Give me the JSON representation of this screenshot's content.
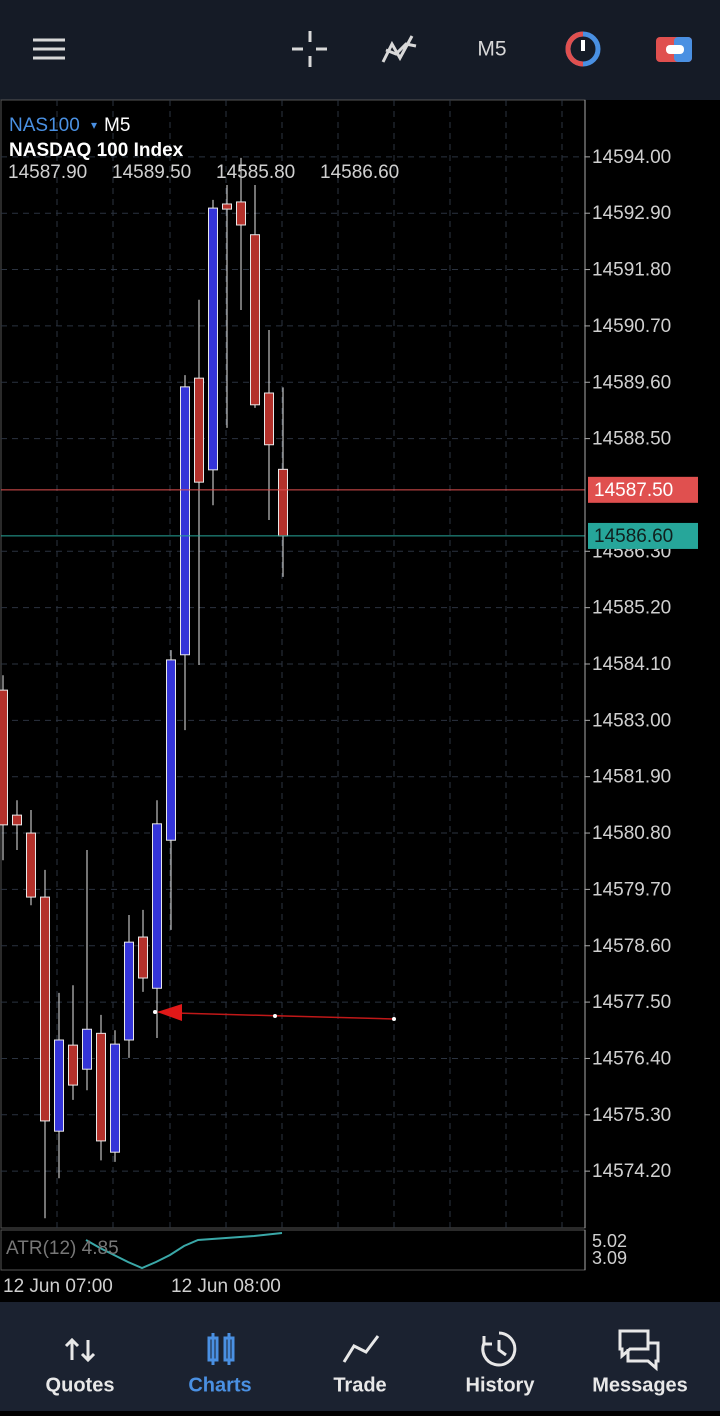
{
  "top_bar": {
    "timeframe": "M5"
  },
  "chart": {
    "type": "candlestick",
    "symbol": "NAS100",
    "timeframe": "M5",
    "description": "NASDAQ 100 Index",
    "ohlc_labels": [
      "14587.90",
      "14589.50",
      "14585.80",
      "14586.60"
    ],
    "ylim": [
      14573.09,
      14595.11
    ],
    "yticks": [
      {
        "value": 14594,
        "label": "14594.00"
      },
      {
        "value": 14592.9,
        "label": "14592.90"
      },
      {
        "value": 14591.8,
        "label": "14591.80"
      },
      {
        "value": 14590.7,
        "label": "14590.70"
      },
      {
        "value": 14589.6,
        "label": "14589.60"
      },
      {
        "value": 14588.5,
        "label": "14588.50"
      },
      {
        "value": 14586.3,
        "label": "14586.30"
      },
      {
        "value": 14585.2,
        "label": "14585.20"
      },
      {
        "value": 14584.1,
        "label": "14584.10"
      },
      {
        "value": 14583,
        "label": "14583.00"
      },
      {
        "value": 14581.9,
        "label": "14581.90"
      },
      {
        "value": 14580.8,
        "label": "14580.80"
      },
      {
        "value": 14579.7,
        "label": "14579.70"
      },
      {
        "value": 14578.6,
        "label": "14578.60"
      },
      {
        "value": 14577.5,
        "label": "14577.50"
      },
      {
        "value": 14576.4,
        "label": "14576.40"
      },
      {
        "value": 14575.3,
        "label": "14575.30"
      },
      {
        "value": 14574.2,
        "label": "14574.20"
      }
    ],
    "up_color": "#3434d8",
    "down_color": "#b3312b",
    "candles": [
      {
        "open": 14583.59,
        "high": 14583.88,
        "low": 14580.27,
        "close": 14580.96
      },
      {
        "open": 14581.15,
        "high": 14581.44,
        "low": 14580.47,
        "close": 14580.96
      },
      {
        "open": 14580.8,
        "high": 14581.25,
        "low": 14579.39,
        "close": 14579.55
      },
      {
        "open": 14579.55,
        "high": 14580.08,
        "low": 14573.28,
        "close": 14575.18
      },
      {
        "open": 14574.98,
        "high": 14577.68,
        "low": 14574.06,
        "close": 14576.76
      },
      {
        "open": 14576.66,
        "high": 14577.83,
        "low": 14575.59,
        "close": 14575.88
      },
      {
        "open": 14576.19,
        "high": 14580.47,
        "low": 14575.78,
        "close": 14576.97
      },
      {
        "open": 14576.89,
        "high": 14577.25,
        "low": 14574.41,
        "close": 14574.79
      },
      {
        "open": 14574.57,
        "high": 14576.95,
        "low": 14574.38,
        "close": 14576.68
      },
      {
        "open": 14576.76,
        "high": 14579.2,
        "low": 14576.41,
        "close": 14578.67
      },
      {
        "open": 14578.77,
        "high": 14579.3,
        "low": 14577.7,
        "close": 14577.97
      },
      {
        "open": 14577.77,
        "high": 14581.44,
        "low": 14576.8,
        "close": 14580.98
      },
      {
        "open": 14580.66,
        "high": 14584.37,
        "low": 14578.91,
        "close": 14584.18
      },
      {
        "open": 14584.28,
        "high": 14589.74,
        "low": 14582.81,
        "close": 14589.51
      },
      {
        "open": 14589.68,
        "high": 14591.21,
        "low": 14584.08,
        "close": 14587.65
      },
      {
        "open": 14587.89,
        "high": 14593.16,
        "low": 14587.2,
        "close": 14593
      },
      {
        "open": 14593.08,
        "high": 14593.45,
        "low": 14588.71,
        "close": 14592.98
      },
      {
        "open": 14593.12,
        "high": 14593.98,
        "low": 14591.01,
        "close": 14592.67
      },
      {
        "open": 14592.48,
        "high": 14593.45,
        "low": 14589.1,
        "close": 14589.16
      },
      {
        "open": 14589.39,
        "high": 14590.62,
        "low": 14586.91,
        "close": 14588.38
      },
      {
        "open": 14587.9,
        "high": 14589.5,
        "low": 14585.8,
        "close": 14586.6
      }
    ],
    "price_lines": [
      {
        "value": 14587.5,
        "label": "14587.50",
        "color": "#e0504f"
      },
      {
        "value": 14586.6,
        "label": "14586.60",
        "color": "#26a69a"
      }
    ],
    "x_labels": [
      "12 Jun 07:00",
      "12 Jun 08:00"
    ],
    "indicator": {
      "label": "ATR(12) 4.85",
      "axis_labels": [
        "5.02",
        "3.09"
      ]
    }
  },
  "nav": {
    "items": [
      "Quotes",
      "Charts",
      "Trade",
      "History",
      "Messages"
    ],
    "active": "Charts"
  }
}
